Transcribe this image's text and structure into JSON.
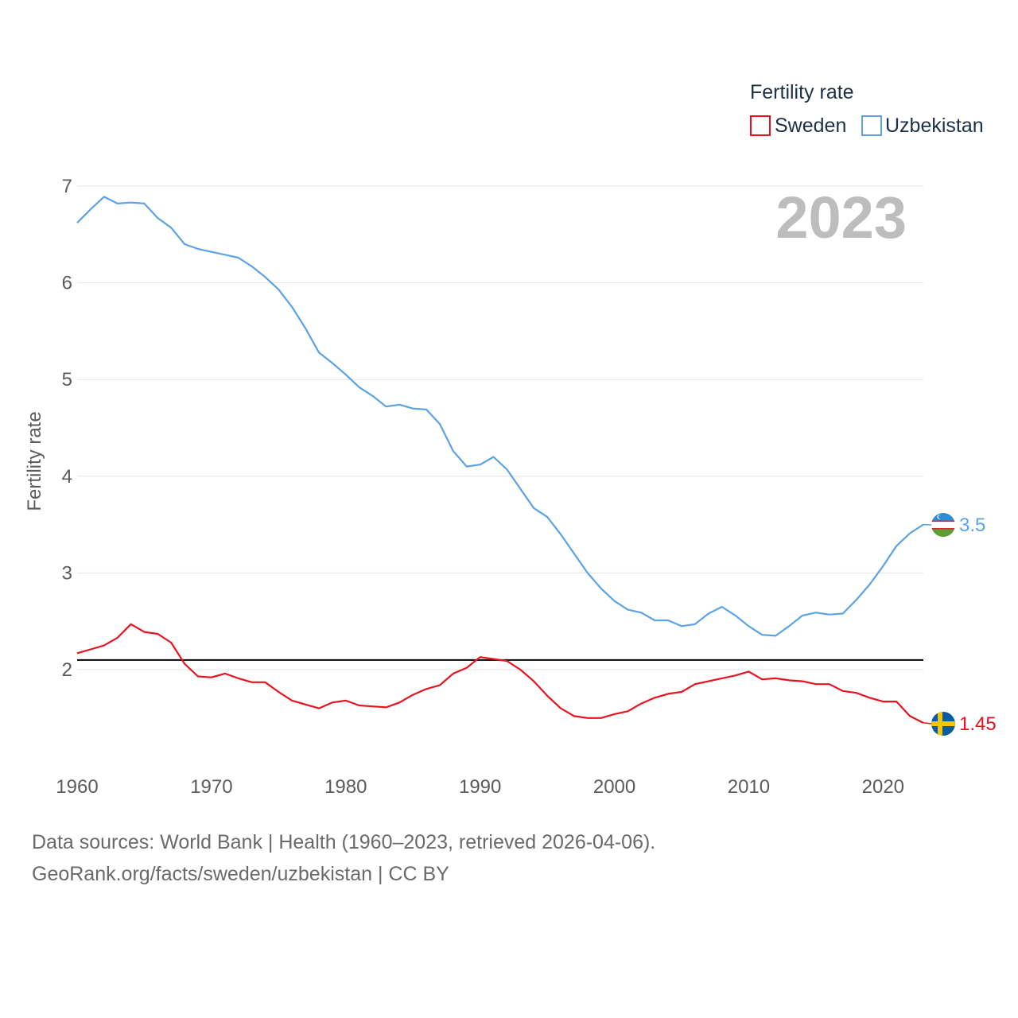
{
  "chart_data": {
    "type": "line",
    "legend_title": "Fertility rate",
    "ylabel": "Fertility rate",
    "year_label": "2023",
    "ylim": [
      1.0,
      7.0
    ],
    "yticks": [
      2,
      3,
      4,
      5,
      6,
      7
    ],
    "xlim": [
      1960,
      2023
    ],
    "xticks": [
      1960,
      1970,
      1980,
      1990,
      2000,
      2010,
      2020
    ],
    "reference_line": 2.1,
    "x": [
      1960,
      1961,
      1962,
      1963,
      1964,
      1965,
      1966,
      1967,
      1968,
      1969,
      1970,
      1971,
      1972,
      1973,
      1974,
      1975,
      1976,
      1977,
      1978,
      1979,
      1980,
      1981,
      1982,
      1983,
      1984,
      1985,
      1986,
      1987,
      1988,
      1989,
      1990,
      1991,
      1992,
      1993,
      1994,
      1995,
      1996,
      1997,
      1998,
      1999,
      2000,
      2001,
      2002,
      2003,
      2004,
      2005,
      2006,
      2007,
      2008,
      2009,
      2010,
      2011,
      2012,
      2013,
      2014,
      2015,
      2016,
      2017,
      2018,
      2019,
      2020,
      2021,
      2022,
      2023
    ],
    "series": [
      {
        "name": "Sweden",
        "color": "#e8131f",
        "end_label": "1.45",
        "flag": "sweden-flag",
        "values": [
          2.17,
          2.21,
          2.25,
          2.33,
          2.47,
          2.39,
          2.37,
          2.28,
          2.06,
          1.93,
          1.92,
          1.96,
          1.91,
          1.87,
          1.87,
          1.77,
          1.68,
          1.64,
          1.6,
          1.66,
          1.68,
          1.63,
          1.62,
          1.61,
          1.66,
          1.74,
          1.8,
          1.84,
          1.96,
          2.02,
          2.13,
          2.11,
          2.09,
          2.0,
          1.88,
          1.73,
          1.6,
          1.52,
          1.5,
          1.5,
          1.54,
          1.57,
          1.65,
          1.71,
          1.75,
          1.77,
          1.85,
          1.88,
          1.91,
          1.94,
          1.98,
          1.9,
          1.91,
          1.89,
          1.88,
          1.85,
          1.85,
          1.78,
          1.76,
          1.71,
          1.67,
          1.67,
          1.52,
          1.45
        ]
      },
      {
        "name": "Uzbekistan",
        "color": "#5ba3e6",
        "end_label": "3.5",
        "flag": "uzbekistan-flag",
        "values": [
          6.62,
          6.76,
          6.89,
          6.82,
          6.83,
          6.82,
          6.67,
          6.57,
          6.4,
          6.35,
          6.32,
          6.29,
          6.26,
          6.17,
          6.06,
          5.93,
          5.75,
          5.53,
          5.28,
          5.17,
          5.05,
          4.92,
          4.83,
          4.72,
          4.74,
          4.7,
          4.69,
          4.54,
          4.26,
          4.1,
          4.12,
          4.2,
          4.07,
          3.87,
          3.67,
          3.58,
          3.4,
          3.2,
          3.0,
          2.84,
          2.71,
          2.62,
          2.59,
          2.51,
          2.51,
          2.45,
          2.47,
          2.58,
          2.65,
          2.56,
          2.45,
          2.36,
          2.35,
          2.45,
          2.56,
          2.59,
          2.57,
          2.58,
          2.72,
          2.88,
          3.07,
          3.28,
          3.41,
          3.5
        ]
      }
    ]
  },
  "source": {
    "line1": "Data sources: World Bank | Health (1960–2023, retrieved 2026-04-06).",
    "line2": "GeoRank.org/facts/sweden/uzbekistan | CC BY"
  }
}
